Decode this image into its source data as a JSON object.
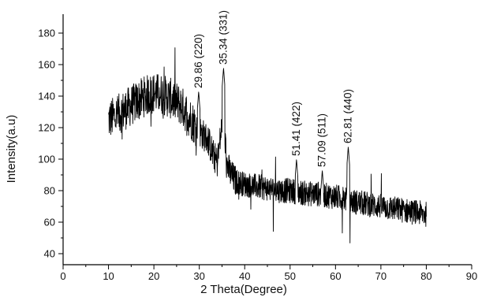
{
  "chart_data": {
    "type": "line",
    "title": "",
    "xlabel": "2 Theta(Degree)",
    "ylabel": "Intensity(a.u)",
    "xlim": [
      0,
      90
    ],
    "ylim": [
      33,
      192
    ],
    "xticks": [
      0,
      10,
      20,
      30,
      40,
      50,
      60,
      70,
      80,
      90
    ],
    "yticks": [
      40,
      60,
      80,
      100,
      120,
      140,
      160,
      180
    ],
    "grid": false,
    "legend": "none",
    "line_color": "#000000",
    "series": [
      {
        "x": [
          10,
          12,
          14,
          16,
          18,
          20,
          22,
          24,
          26,
          28,
          30,
          32,
          33,
          34,
          35.34,
          36,
          37,
          38,
          40,
          42,
          44,
          46,
          48,
          50,
          52,
          54,
          56,
          58,
          60,
          62,
          64,
          66,
          68,
          70,
          72,
          74,
          76,
          78,
          80
        ],
        "values": [
          125,
          128,
          132,
          136,
          140,
          142,
          141,
          138,
          134,
          126,
          118,
          112,
          103,
          98,
          130,
          97,
          90,
          86,
          84,
          83,
          82,
          81,
          80,
          80,
          79,
          78,
          78,
          77,
          76,
          75,
          73,
          72,
          71,
          70,
          69,
          68,
          67,
          66,
          65
        ]
      }
    ],
    "peaks": [
      {
        "x": 29.86,
        "y": 143,
        "label": "29.86 (220)"
      },
      {
        "x": 35.34,
        "y": 158,
        "label": "35.34 (331)"
      },
      {
        "x": 51.41,
        "y": 100,
        "label": "51.41 (422)"
      },
      {
        "x": 57.09,
        "y": 93,
        "label": "57.09 (511)"
      },
      {
        "x": 62.81,
        "y": 108,
        "label": "62.81 (440)"
      }
    ]
  }
}
